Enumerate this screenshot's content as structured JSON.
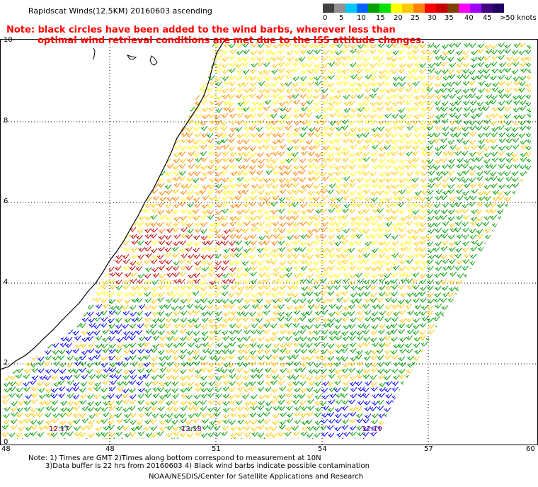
{
  "title": "Rapidscat Winds(12.5KM) 20160603 ascending",
  "note_line1": "Note: black circles have been added to the wind barbs, wherever less than",
  "note_line2": "optimal wind retrieval conditions are met due to the ISS attitude changes.",
  "legend": {
    "labels": [
      "0",
      "5",
      "10",
      "15",
      "20",
      "25",
      "30",
      "35",
      "40",
      "45",
      ">50 knots"
    ],
    "colors": [
      "#404040",
      "#909090",
      "#00c8ff",
      "#0064ff",
      "#00a000",
      "#00e000",
      "#ffff00",
      "#ffc800",
      "#ff8000",
      "#ff0000",
      "#c80000",
      "#804000",
      "#ff00ff",
      "#a000ff",
      "#400080",
      "#200060"
    ]
  },
  "lat_labels": [
    "10",
    "8",
    "6",
    "4",
    "2",
    "0"
  ],
  "lon_labels": [
    "48",
    "51",
    "54",
    "57",
    "60"
  ],
  "time_labels": [
    "12:17",
    "12:18",
    "12:19"
  ],
  "footer_line1": "Note: 1) Times are GMT 2)Times along bottom correspond to measurement at 10N",
  "footer_line2": "3)Data buffer is 22 hrs from 20160603 4) Black wind barbs indicate possible contamination",
  "credit": "NOAA/NESDIS/Center for Satellite Applications and Research",
  "barb_colors": {
    "green": "#00a000",
    "yellow": "#ffff00",
    "gold": "#ffc800",
    "orange": "#ff8000",
    "red": "#c80000",
    "blue": "#0000ff"
  }
}
